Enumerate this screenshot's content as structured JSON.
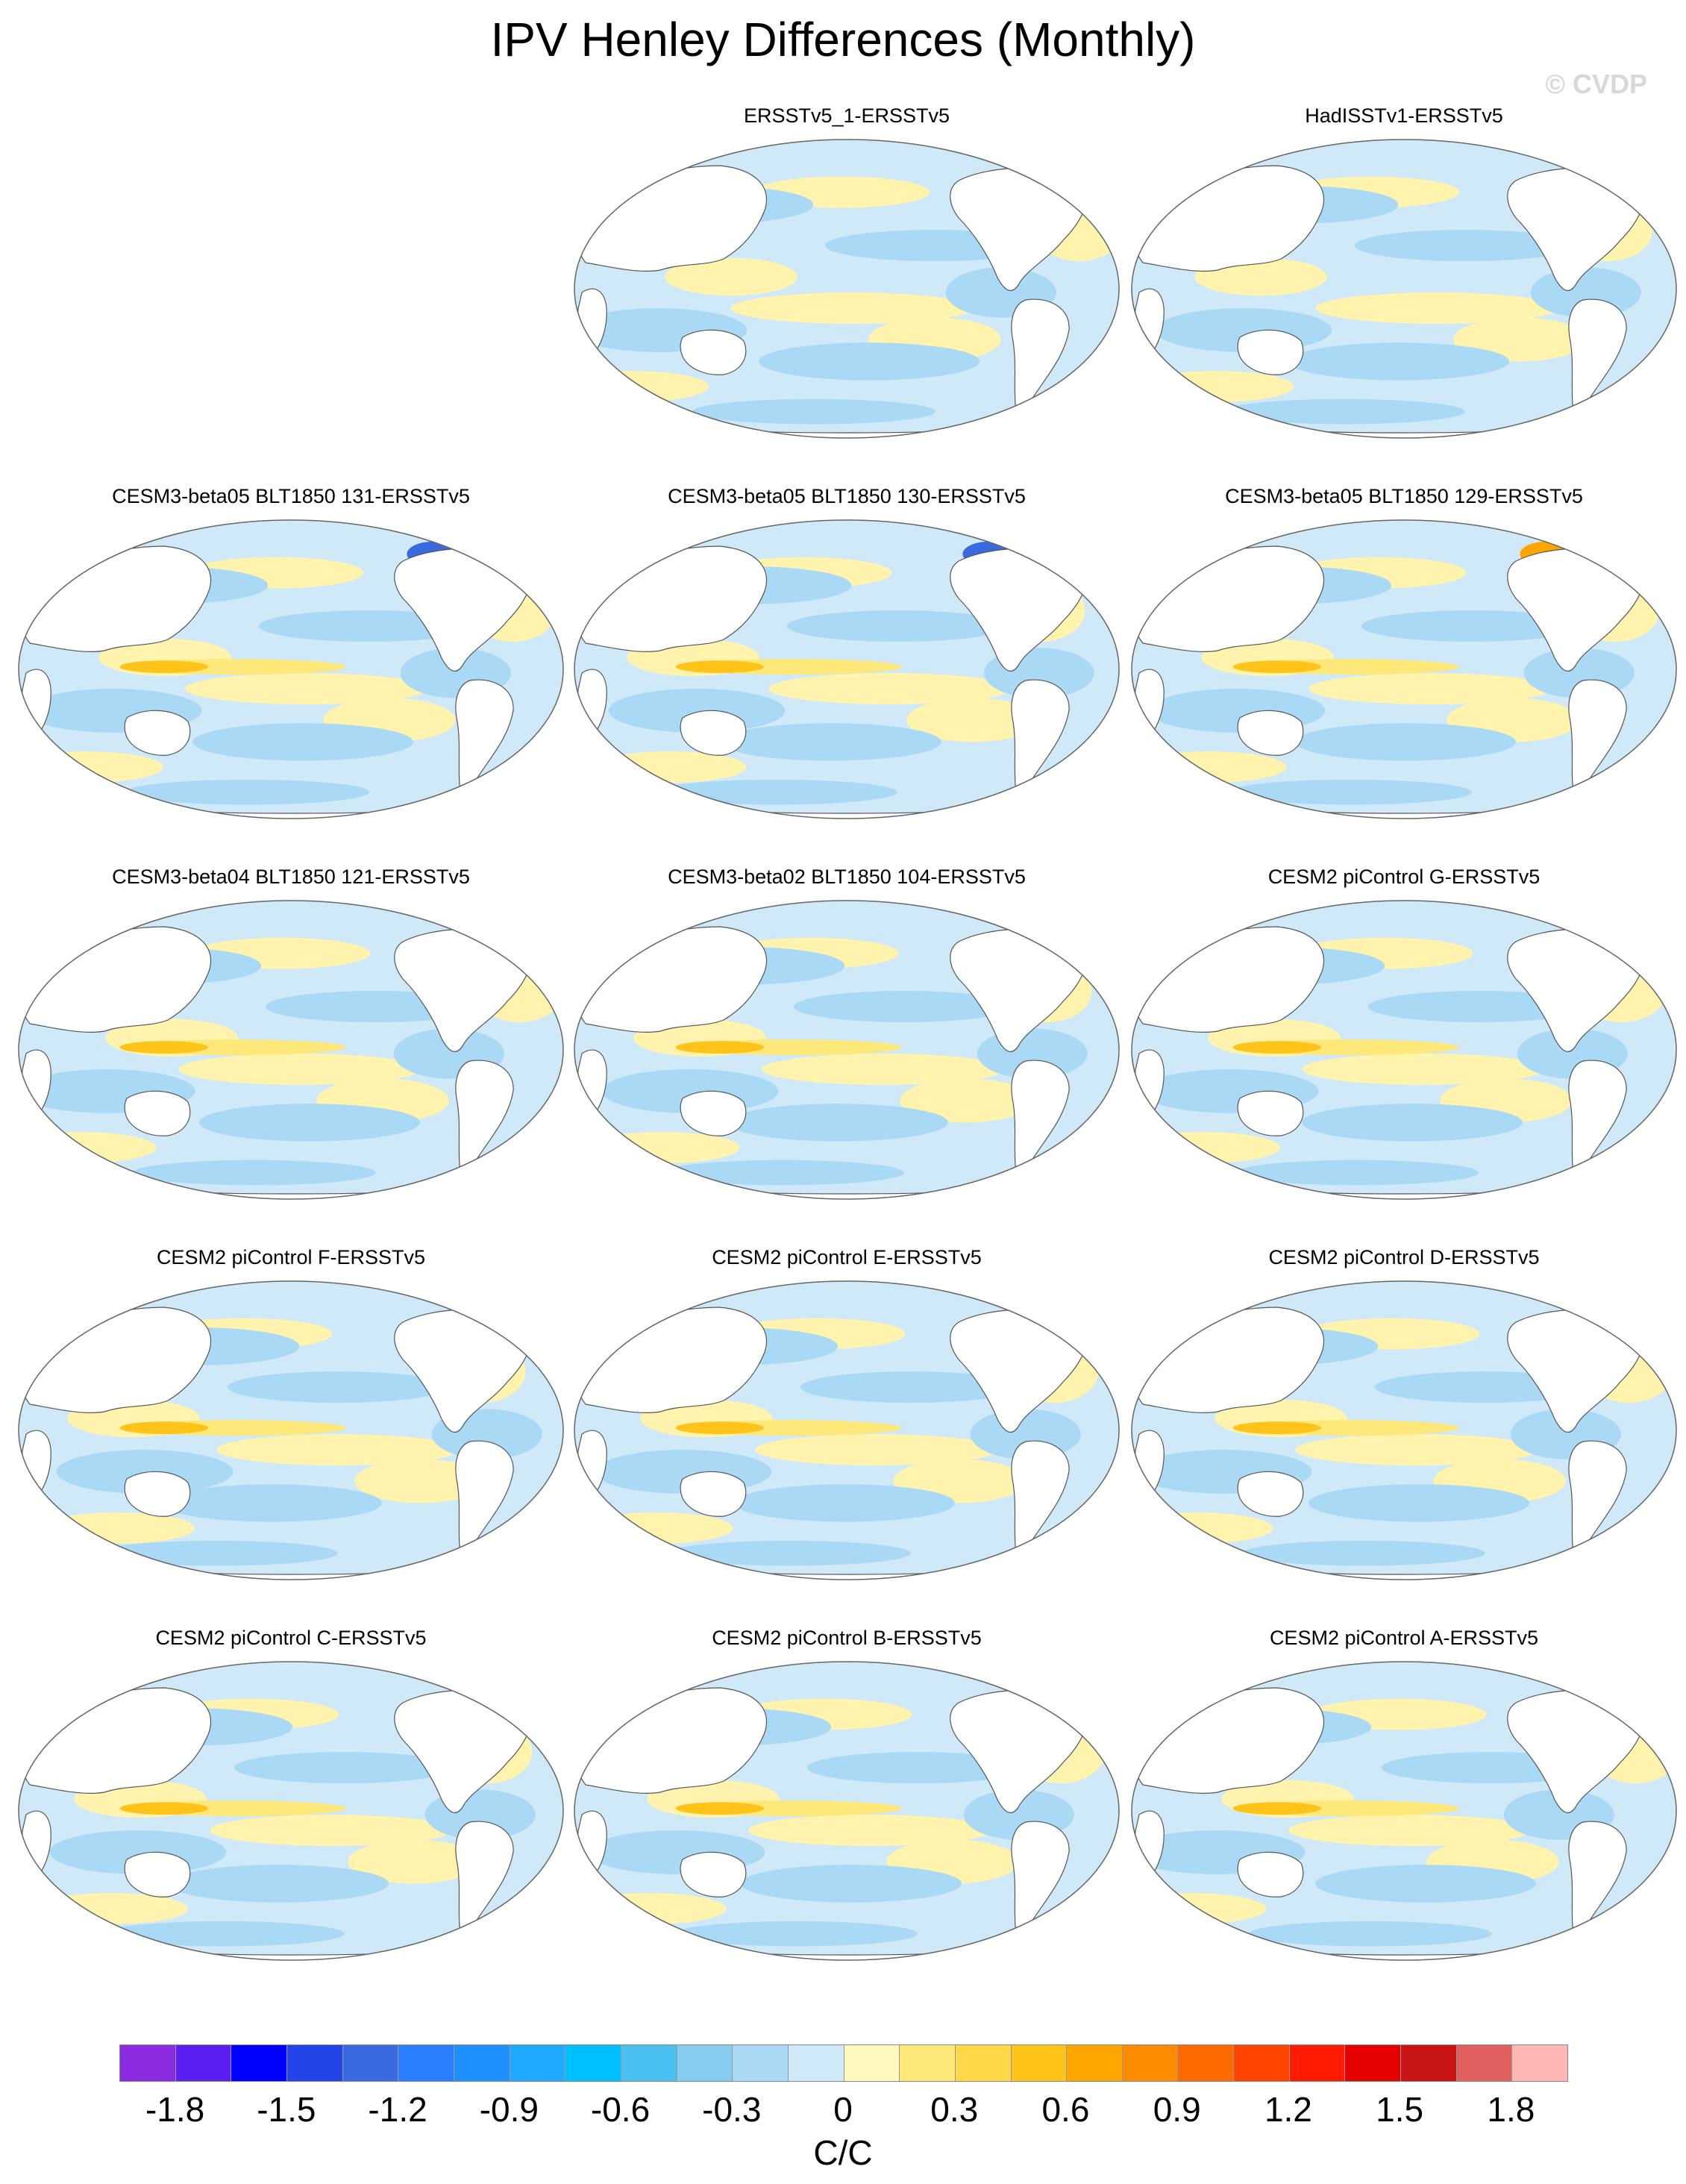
{
  "title": "IPV Henley Differences (Monthly)",
  "watermark": "© CVDP",
  "panels": [
    {
      "title": "ERSSTv5_1-ERSSTv5"
    },
    {
      "title": "HadISSTv1-ERSSTv5"
    },
    {
      "title": "CESM3-beta05 BLT1850 131-ERSSTv5"
    },
    {
      "title": "CESM3-beta05 BLT1850 130-ERSSTv5"
    },
    {
      "title": "CESM3-beta05 BLT1850 129-ERSSTv5"
    },
    {
      "title": "CESM3-beta04 BLT1850 121-ERSSTv5"
    },
    {
      "title": "CESM3-beta02 BLT1850 104-ERSSTv5"
    },
    {
      "title": "CESM2 piControl G-ERSSTv5"
    },
    {
      "title": "CESM2 piControl F-ERSSTv5"
    },
    {
      "title": "CESM2 piControl E-ERSSTv5"
    },
    {
      "title": "CESM2 piControl D-ERSSTv5"
    },
    {
      "title": "CESM2 piControl C-ERSSTv5"
    },
    {
      "title": "CESM2 piControl B-ERSSTv5"
    },
    {
      "title": "CESM2 piControl A-ERSSTv5"
    }
  ],
  "colorbar": {
    "units": "C/C",
    "tick_labels": [
      "-1.8",
      "-1.5",
      "-1.2",
      "-0.9",
      "-0.6",
      "-0.3",
      "0",
      "0.3",
      "0.6",
      "0.9",
      "1.2",
      "1.5",
      "1.8"
    ],
    "colors": [
      "#8a2be2",
      "#5a1ef0",
      "#0000ff",
      "#2244e8",
      "#3a6ae0",
      "#2a7fff",
      "#1e90ff",
      "#1eaaff",
      "#00bfff",
      "#49c0f0",
      "#87cdf0",
      "#a9d9f5",
      "#cfe9f8",
      "#fff8bf",
      "#ffe87a",
      "#ffd84a",
      "#ffc31a",
      "#ffa500",
      "#ff8c00",
      "#ff6a00",
      "#ff4500",
      "#ff1a00",
      "#e60000",
      "#c81414",
      "#e06060",
      "#ffb6b6"
    ]
  }
}
